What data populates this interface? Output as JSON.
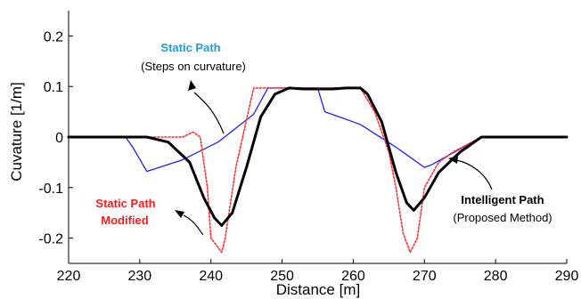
{
  "chart_data": {
    "type": "line",
    "xlabel": "Distance [m]",
    "ylabel": "Cuvature [1/m]",
    "xlim": [
      220,
      290
    ],
    "ylim": [
      -0.25,
      0.25
    ],
    "xticks": [
      220,
      230,
      240,
      250,
      260,
      270,
      280,
      290
    ],
    "yticks": [
      -0.2,
      -0.1,
      0,
      0.1,
      0.2
    ],
    "ytick_labels": [
      "-0.2",
      "-0.1",
      "0",
      "0.1",
      "0.2"
    ],
    "grid": false,
    "series": [
      {
        "key": "static",
        "color": "#1f1fff",
        "style": "solid",
        "x": [
          220,
          228,
          229,
          231,
          236,
          241,
          246,
          248,
          252,
          255,
          256,
          261,
          266,
          268,
          270,
          271,
          278,
          290
        ],
        "y": [
          0,
          0,
          -0.02,
          -0.068,
          -0.045,
          -0.01,
          0.045,
          0.097,
          0.097,
          0.097,
          0.05,
          0.025,
          -0.02,
          -0.04,
          -0.06,
          -0.055,
          0,
          0
        ]
      },
      {
        "key": "modified",
        "color": "#ff3030",
        "style": "dotted",
        "x": [
          220,
          231,
          236,
          237.5,
          238.5,
          239.5,
          240,
          241.5,
          242,
          243.5,
          246,
          248,
          252,
          259,
          261,
          263,
          265,
          266,
          267,
          268,
          269,
          270,
          272,
          274,
          278,
          290
        ],
        "y": [
          0,
          0,
          0,
          0.01,
          0,
          -0.1,
          -0.2,
          -0.228,
          -0.2,
          -0.06,
          0.097,
          0.097,
          0.097,
          0.097,
          0.097,
          0.05,
          -0.03,
          -0.1,
          -0.19,
          -0.228,
          -0.2,
          -0.1,
          -0.05,
          -0.03,
          0,
          0
        ]
      },
      {
        "key": "intelligent",
        "color": "#000000",
        "style": "bold",
        "x": [
          220,
          231,
          234,
          237,
          239,
          240.5,
          241.5,
          243,
          245,
          247,
          249,
          251,
          253,
          255,
          257,
          259,
          261,
          262,
          264,
          266,
          267.5,
          268.5,
          270,
          272,
          275,
          278,
          290
        ],
        "y": [
          0,
          0,
          -0.01,
          -0.05,
          -0.12,
          -0.16,
          -0.175,
          -0.15,
          -0.06,
          0.04,
          0.085,
          0.097,
          0.095,
          0.095,
          0.095,
          0.097,
          0.097,
          0.085,
          0.03,
          -0.07,
          -0.13,
          -0.145,
          -0.12,
          -0.07,
          -0.03,
          0,
          0
        ]
      }
    ],
    "annotations": {
      "static_title": "Static Path",
      "static_sub": "(Steps on curvature)",
      "modified_line1": "Static Path",
      "modified_line2": "Modified",
      "intelligent_title": "Intelligent Path",
      "intelligent_sub": "(Proposed Method)"
    },
    "annotation_colors": {
      "static": "#1aa0e0",
      "modified": "#ff1a1a",
      "intelligent": "#000000"
    }
  }
}
